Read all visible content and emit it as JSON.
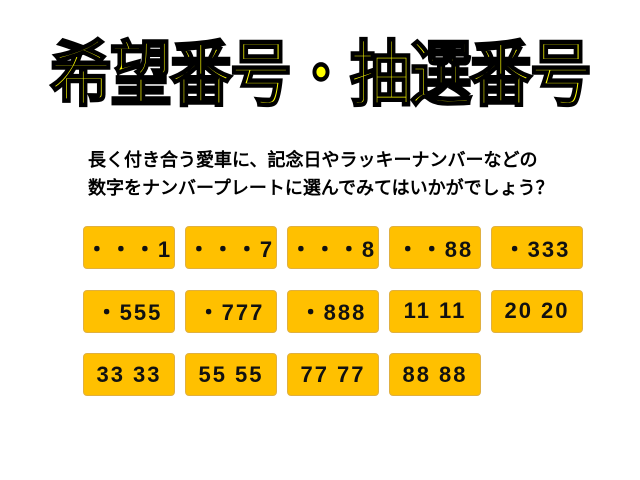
{
  "title": "希望番号・抽選番号",
  "description": [
    "長く付き合う愛車に、記念日やラッキーナンバーなどの",
    "数字をナンバープレートに選んでみてはいかがでしょう？"
  ],
  "plates": [
    "・・・1",
    "・・・7",
    "・・・8",
    "・・88",
    "・333",
    "・555",
    "・777",
    "・888",
    "11 11",
    "20 20",
    "33 33",
    "55 55",
    "77 77",
    "88 88"
  ],
  "plate_color": "#ffc000",
  "title_color": "#ffff00"
}
